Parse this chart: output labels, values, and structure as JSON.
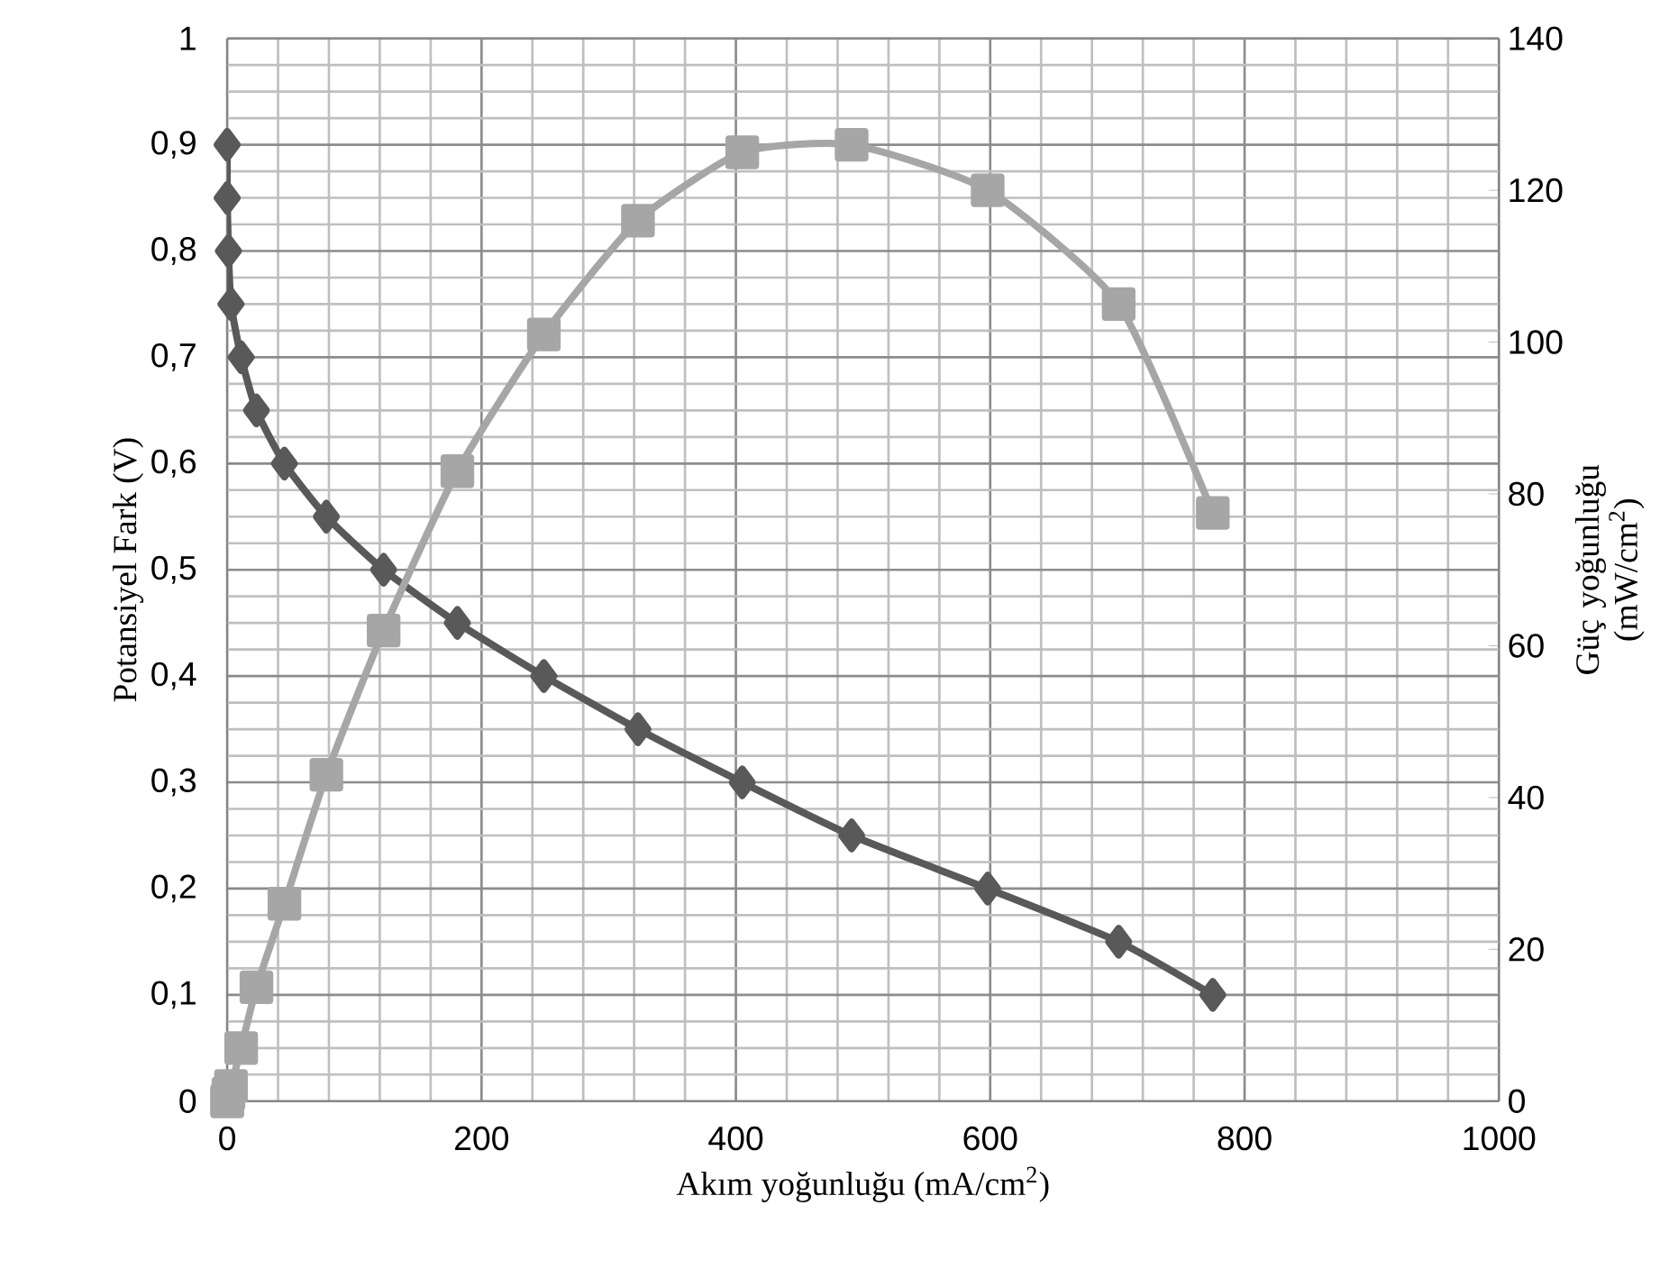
{
  "chart_data": {
    "type": "line",
    "xlabel": "Akım yoğunluğu (mA/cm$^{2}$)",
    "ylabel": "Potansiyel Fark (V)",
    "y2label": "Güç yoğunluğu (mW/cm$^{2}$)",
    "series": [
      {
        "color": "#595959",
        "marker": "diamond",
        "axis": "y",
        "x": [
          0,
          0,
          1,
          3,
          11,
          23,
          45,
          78,
          123,
          181,
          249,
          323,
          405,
          491,
          598,
          701,
          775
        ],
        "values": [
          0.9,
          0.85,
          0.8,
          0.75,
          0.7,
          0.65,
          0.6,
          0.55,
          0.5,
          0.45,
          0.4,
          0.35,
          0.3,
          0.25,
          0.2,
          0.15,
          0.1
        ]
      },
      {
        "color": "#a6a6a6",
        "marker": "square",
        "axis": "y2",
        "x": [
          0,
          0,
          1,
          3,
          11,
          23,
          45,
          78,
          123,
          181,
          249,
          323,
          405,
          491,
          598,
          701,
          775
        ],
        "values": [
          0,
          0,
          1,
          2,
          7,
          15,
          26,
          43,
          62,
          83,
          101,
          116,
          125,
          126,
          120,
          105,
          77.5
        ]
      }
    ],
    "xlim": [
      0,
      1000
    ],
    "xticks": [
      0,
      200,
      400,
      600,
      800,
      1000
    ],
    "ylim": [
      0,
      1
    ],
    "yticks": [
      0,
      {
        "value": 0.1,
        "label": "0,1"
      },
      {
        "value": 0.2,
        "label": "0,2"
      },
      {
        "value": 0.3,
        "label": "0,3"
      },
      {
        "value": 0.4,
        "label": "0,4"
      },
      {
        "value": 0.5,
        "label": "0,5"
      },
      {
        "value": 0.6,
        "label": "0,6"
      },
      {
        "value": 0.7,
        "label": "0,7"
      },
      {
        "value": 0.8,
        "label": "0,8"
      },
      {
        "value": 0.9,
        "label": "0,9"
      },
      1
    ],
    "y2lim": [
      0,
      140
    ],
    "y2ticks": [
      0,
      20,
      40,
      60,
      80,
      100,
      120,
      140
    ],
    "grid": true,
    "line_style": "solid"
  }
}
